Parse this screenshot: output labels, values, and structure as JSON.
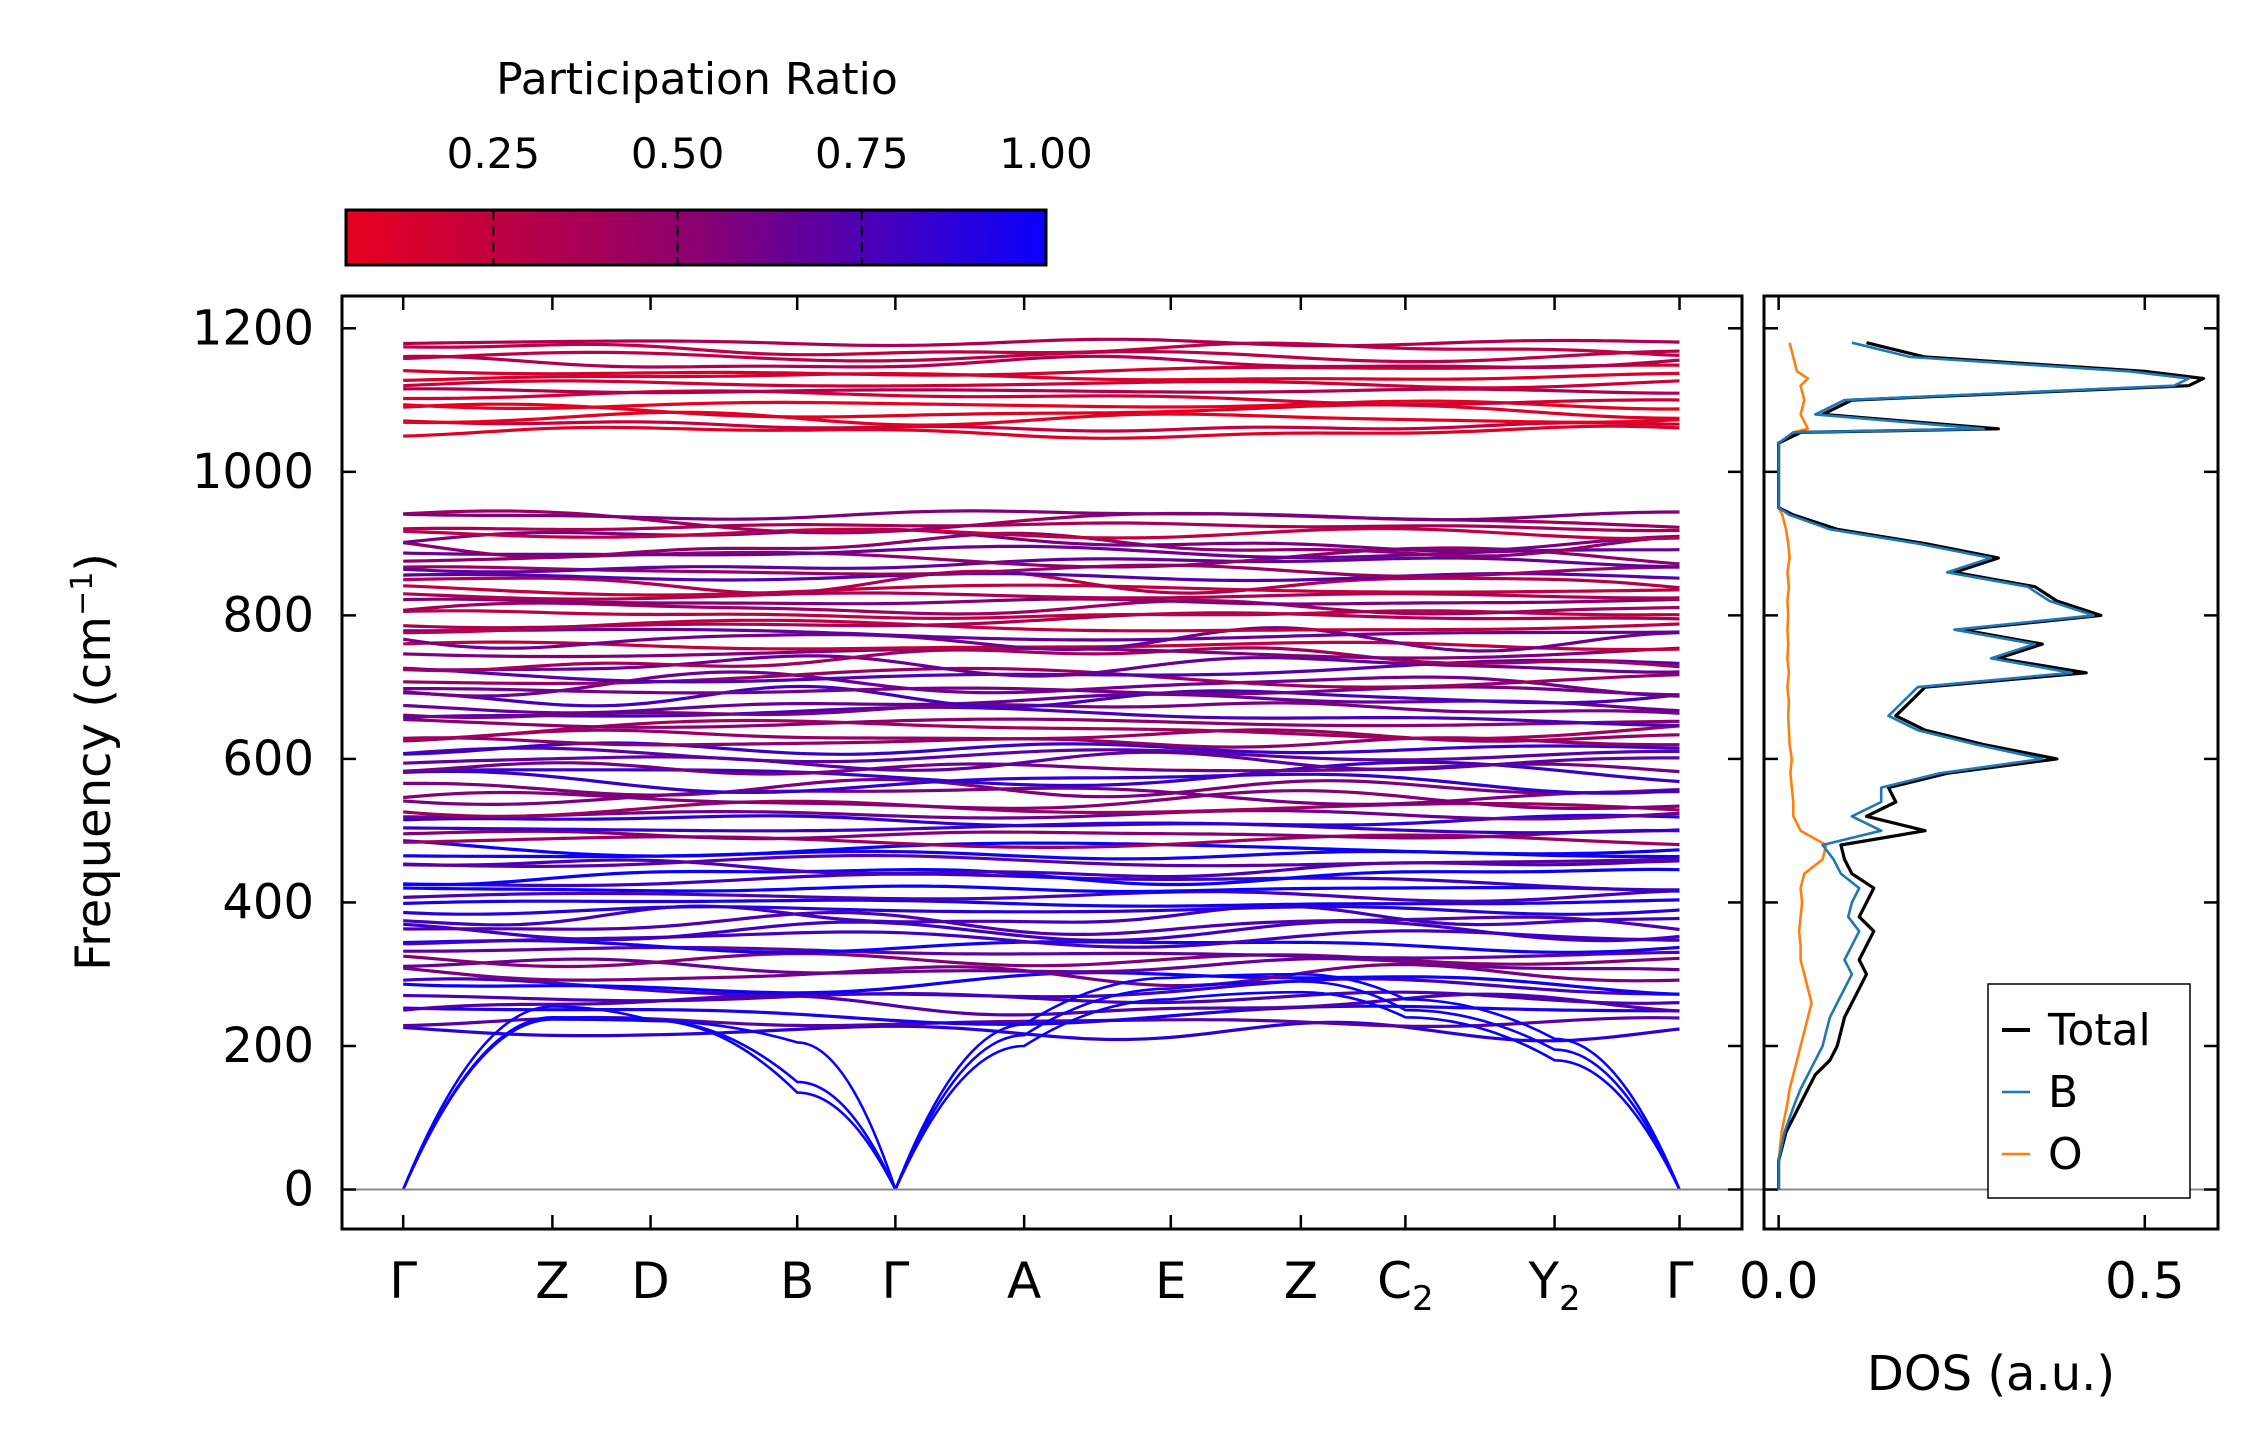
{
  "chart_data": [
    {
      "type": "line",
      "panel": "phonon-dispersion",
      "title": "",
      "ylabel": "Frequency (cm⁻¹)",
      "ylabel_main": "Frequency (cm",
      "ylabel_sup": "−1",
      "ylabel_close": ")",
      "xlabel": "",
      "ylim": [
        -55,
        1245
      ],
      "yticks": [
        0,
        200,
        400,
        600,
        800,
        1000,
        1200
      ],
      "ytick_labels": [
        "0",
        "200",
        "400",
        "600",
        "800",
        "1000",
        "1200"
      ],
      "k_path": [
        {
          "pos": 0.0,
          "label": "Γ",
          "sub": ""
        },
        {
          "pos": 1.17,
          "label": "Z",
          "sub": ""
        },
        {
          "pos": 1.94,
          "label": "D",
          "sub": ""
        },
        {
          "pos": 3.09,
          "label": "B",
          "sub": ""
        },
        {
          "pos": 3.86,
          "label": "Γ",
          "sub": ""
        },
        {
          "pos": 4.87,
          "label": "A",
          "sub": ""
        },
        {
          "pos": 6.02,
          "label": "E",
          "sub": ""
        },
        {
          "pos": 7.04,
          "label": "Z",
          "sub": ""
        },
        {
          "pos": 7.86,
          "label": "C",
          "sub": "2"
        },
        {
          "pos": 9.03,
          "label": "Y",
          "sub": "2"
        },
        {
          "pos": 10.01,
          "label": "Γ",
          "sub": ""
        }
      ],
      "xlim": [
        -0.48,
        10.5
      ],
      "zero_line": 0,
      "acoustic_branches": [
        {
          "x": [
            0.0,
            1.17,
            1.94,
            3.09,
            3.86
          ],
          "y": [
            0,
            237,
            235,
            205,
            0
          ]
        },
        {
          "x": [
            0.0,
            1.17,
            1.94,
            3.09,
            3.86
          ],
          "y": [
            0,
            240,
            236,
            150,
            0
          ]
        },
        {
          "x": [
            0.0,
            1.17,
            1.94,
            3.09,
            3.86
          ],
          "y": [
            0,
            255,
            236,
            135,
            0
          ]
        },
        {
          "x": [
            3.86,
            4.87,
            6.02,
            7.04,
            7.86,
            9.03,
            10.01
          ],
          "y": [
            0,
            230,
            295,
            300,
            265,
            210,
            0
          ]
        },
        {
          "x": [
            3.86,
            4.87,
            6.02,
            7.04,
            7.86,
            9.03,
            10.01
          ],
          "y": [
            0,
            215,
            280,
            290,
            250,
            195,
            0
          ]
        },
        {
          "x": [
            3.86,
            4.87,
            6.02,
            7.04,
            7.86,
            9.03,
            10.01
          ],
          "y": [
            0,
            200,
            265,
            275,
            240,
            180,
            0
          ]
        }
      ],
      "optical_bands": {
        "low_region": [
          220,
          950
        ],
        "high_region": [
          1055,
          1180
        ],
        "count_low": 78,
        "count_high": 14
      },
      "colorbar": {
        "label": "Participation Ratio",
        "range": [
          0.05,
          1.0
        ],
        "low_color": "#e8001e",
        "mid_color": "#8a0070",
        "high_color": "#0a00ff",
        "ticks": [
          0.25,
          0.5,
          0.75,
          1.0
        ],
        "tick_labels": [
          "0.25",
          "0.50",
          "0.75",
          "1.00"
        ]
      }
    },
    {
      "type": "line",
      "panel": "density-of-states",
      "xlabel": "DOS (a.u.)",
      "ylabel": "",
      "xlim": [
        -0.02,
        0.6
      ],
      "xticks": [
        0.0,
        0.5
      ],
      "xtick_labels": [
        "0.0",
        "0.5"
      ],
      "series": [
        {
          "name": "Total",
          "color": "#000000",
          "y": [
            0,
            20,
            40,
            60,
            80,
            100,
            120,
            140,
            160,
            180,
            200,
            220,
            240,
            260,
            280,
            300,
            320,
            340,
            360,
            380,
            400,
            420,
            440,
            460,
            480,
            500,
            520,
            540,
            560,
            580,
            600,
            620,
            640,
            660,
            680,
            700,
            720,
            740,
            760,
            780,
            800,
            820,
            840,
            860,
            880,
            900,
            920,
            940,
            950,
            1000,
            1040,
            1055,
            1060,
            1080,
            1100,
            1120,
            1130,
            1140,
            1160,
            1180
          ],
          "values": [
            0,
            0,
            0,
            0.005,
            0.01,
            0.02,
            0.03,
            0.04,
            0.05,
            0.07,
            0.08,
            0.085,
            0.09,
            0.1,
            0.11,
            0.12,
            0.11,
            0.12,
            0.13,
            0.11,
            0.12,
            0.13,
            0.1,
            0.09,
            0.085,
            0.2,
            0.12,
            0.16,
            0.15,
            0.23,
            0.38,
            0.28,
            0.2,
            0.16,
            0.18,
            0.2,
            0.42,
            0.3,
            0.36,
            0.25,
            0.44,
            0.38,
            0.35,
            0.24,
            0.3,
            0.2,
            0.08,
            0.02,
            0,
            0,
            0,
            0.03,
            0.3,
            0.06,
            0.1,
            0.56,
            0.58,
            0.5,
            0.2,
            0.12
          ]
        },
        {
          "name": "B",
          "color": "#1f77b4",
          "y": [
            0,
            20,
            40,
            60,
            80,
            100,
            120,
            140,
            160,
            180,
            200,
            220,
            240,
            260,
            280,
            300,
            320,
            340,
            360,
            380,
            400,
            420,
            440,
            460,
            480,
            500,
            520,
            540,
            560,
            580,
            600,
            620,
            640,
            660,
            680,
            700,
            720,
            740,
            760,
            780,
            800,
            820,
            840,
            860,
            880,
            900,
            920,
            940,
            950,
            1000,
            1040,
            1055,
            1060,
            1080,
            1100,
            1120,
            1130,
            1140,
            1160,
            1180
          ],
          "values": [
            0,
            0,
            0,
            0.004,
            0.008,
            0.015,
            0.022,
            0.03,
            0.04,
            0.05,
            0.06,
            0.065,
            0.07,
            0.08,
            0.09,
            0.1,
            0.09,
            0.1,
            0.11,
            0.095,
            0.1,
            0.11,
            0.085,
            0.075,
            0.06,
            0.14,
            0.1,
            0.14,
            0.14,
            0.22,
            0.36,
            0.27,
            0.19,
            0.15,
            0.17,
            0.19,
            0.4,
            0.29,
            0.35,
            0.24,
            0.43,
            0.37,
            0.34,
            0.23,
            0.29,
            0.19,
            0.07,
            0.015,
            0,
            0,
            0,
            0.02,
            0.28,
            0.05,
            0.09,
            0.54,
            0.56,
            0.48,
            0.18,
            0.1
          ]
        },
        {
          "name": "O",
          "color": "#ff7f0e",
          "y": [
            0,
            20,
            40,
            60,
            80,
            100,
            120,
            140,
            160,
            180,
            200,
            220,
            240,
            260,
            280,
            300,
            320,
            340,
            360,
            380,
            400,
            420,
            440,
            460,
            480,
            500,
            520,
            540,
            560,
            580,
            600,
            620,
            640,
            660,
            680,
            700,
            720,
            740,
            760,
            780,
            800,
            820,
            840,
            860,
            880,
            900,
            920,
            940,
            950,
            1000,
            1040,
            1055,
            1060,
            1080,
            1100,
            1120,
            1130,
            1140,
            1160,
            1180
          ],
          "values": [
            0,
            0,
            0,
            0.002,
            0.004,
            0.008,
            0.012,
            0.015,
            0.02,
            0.025,
            0.03,
            0.035,
            0.04,
            0.045,
            0.04,
            0.035,
            0.03,
            0.03,
            0.028,
            0.03,
            0.032,
            0.03,
            0.035,
            0.06,
            0.065,
            0.03,
            0.02,
            0.02,
            0.018,
            0.016,
            0.018,
            0.015,
            0.014,
            0.013,
            0.014,
            0.012,
            0.014,
            0.012,
            0.013,
            0.012,
            0.013,
            0.012,
            0.014,
            0.012,
            0.015,
            0.013,
            0.01,
            0.005,
            0,
            0,
            0,
            0.02,
            0.04,
            0.03,
            0.035,
            0.03,
            0.04,
            0.025,
            0.02,
            0.015
          ]
        }
      ],
      "legend": {
        "placement": "bottom-right",
        "entries": [
          "Total",
          "B",
          "O"
        ]
      }
    }
  ]
}
